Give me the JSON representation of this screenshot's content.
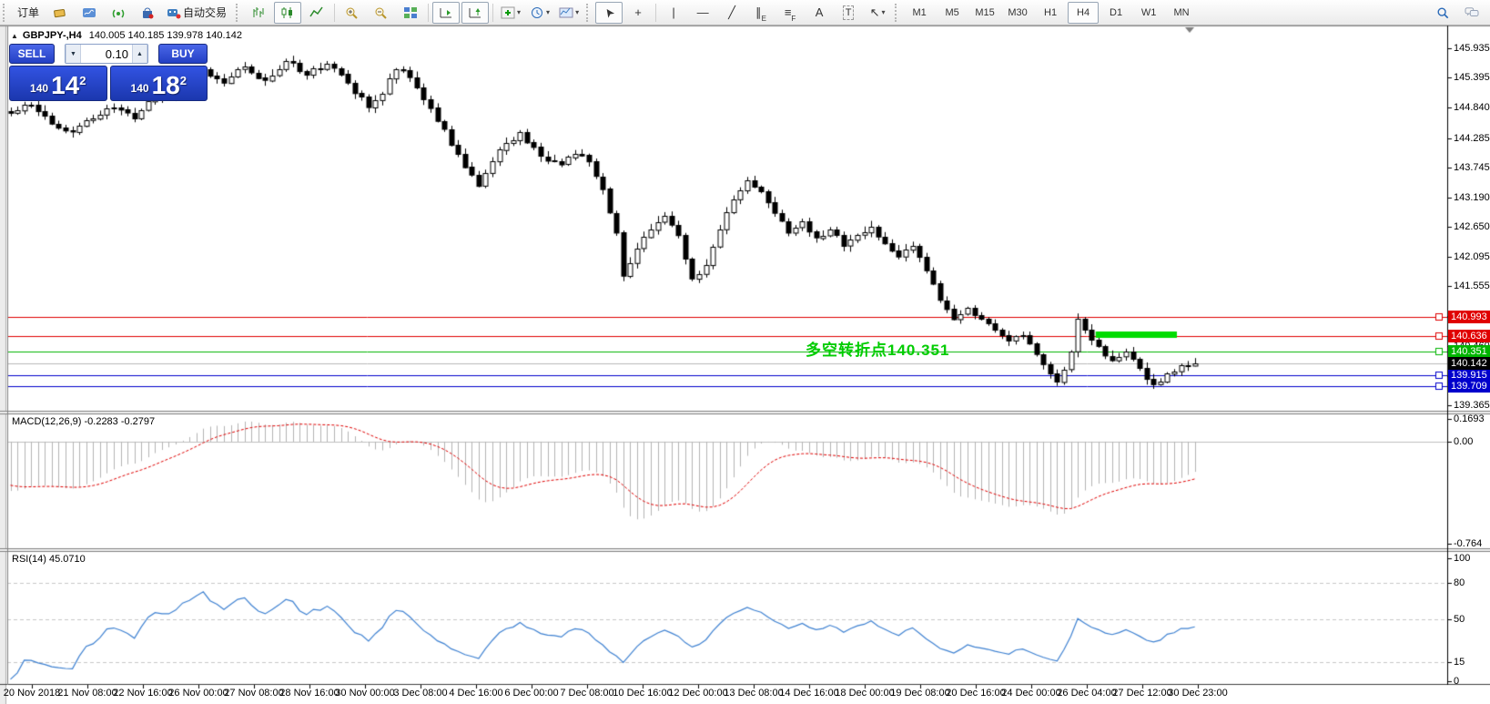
{
  "toolbar": {
    "items": [
      {
        "sep": "grip"
      },
      {
        "name": "new-order-button",
        "text": "订单"
      },
      {
        "name": "new-order-icon",
        "svg": "gold"
      },
      {
        "name": "publish-chart-icon",
        "svg": "cloud"
      },
      {
        "name": "signals-icon",
        "svg": "signal"
      },
      {
        "name": "market-icon",
        "svg": "bag"
      },
      {
        "name": "autotrading-button",
        "svg": "auto",
        "text": "自动交易"
      },
      {
        "sep": "grip"
      },
      {
        "name": "bar-chart-button",
        "svg": "bars"
      },
      {
        "name": "candlestick-chart-button",
        "svg": "candles",
        "active": true
      },
      {
        "name": "line-chart-button",
        "svg": "linechart"
      },
      {
        "sep": "bar"
      },
      {
        "name": "zoom-in-button",
        "svg": "zoomin"
      },
      {
        "name": "zoom-out-button",
        "svg": "zoomout"
      },
      {
        "name": "tile-windows-button",
        "svg": "tile"
      },
      {
        "sep": "bar"
      },
      {
        "name": "auto-scroll-button",
        "svg": "scroll",
        "active": true
      },
      {
        "name": "chart-shift-button",
        "svg": "shift",
        "active": true
      },
      {
        "sep": "bar"
      },
      {
        "name": "indicators-button",
        "svg": "indicators",
        "caret": true
      },
      {
        "name": "periods-button",
        "svg": "clock",
        "caret": true
      },
      {
        "name": "templates-button",
        "svg": "template",
        "caret": true
      },
      {
        "sep": "grip"
      },
      {
        "name": "cursor-button",
        "glyph": "➤",
        "cls": "rot225",
        "active": true
      },
      {
        "name": "crosshair-button",
        "glyph": "+"
      },
      {
        "sep": "bar"
      },
      {
        "name": "vertical-line-button",
        "glyph": "|"
      },
      {
        "name": "horizontal-line-button",
        "glyph": "—"
      },
      {
        "name": "trendline-button",
        "glyph": "╱"
      },
      {
        "name": "equidistant-channel-button",
        "glyph": "∥",
        "sub": "E"
      },
      {
        "name": "fibonacci-button",
        "glyph": "≡",
        "sub": "F"
      },
      {
        "name": "text-button",
        "glyph": "A"
      },
      {
        "name": "text-label-button",
        "glyph": "T",
        "cls": "boxed"
      },
      {
        "name": "arrows-button",
        "glyph": "↖",
        "caret": true
      },
      {
        "sep": "grip"
      },
      {
        "timeframes": true
      }
    ],
    "right_items": [
      {
        "name": "search-button",
        "svg": "search"
      },
      {
        "name": "chat-button",
        "svg": "chat"
      }
    ],
    "timeframes": [
      "M1",
      "M5",
      "M15",
      "M30",
      "H1",
      "H4",
      "D1",
      "W1",
      "MN"
    ],
    "active_timeframe": "H4"
  },
  "chart": {
    "collapse_icon": "▲",
    "title_symbol": "GBPJPY-,H4",
    "ohlc_text": "140.005 140.185 139.978 140.142",
    "trade_panel": {
      "sell_label": "SELL",
      "buy_label": "BUY",
      "volume": "0.10",
      "down_arrow": "▼",
      "up_arrow": "▲",
      "sell_price": {
        "prefix": "140",
        "big": "14",
        "sup": "2"
      },
      "buy_price": {
        "prefix": "140",
        "big": "18",
        "sup": "2"
      }
    },
    "annotation": {
      "text": "多空转折点140.351",
      "color": "#00CC00",
      "bar": 115.5,
      "price": 140.62
    }
  },
  "chart_data": {
    "type": "candlestick",
    "symbol": "GBPJPY-",
    "period": "H4",
    "bull_color": "#FFFFFF",
    "bear_color": "#000000",
    "outline_color": "#000000",
    "visible_bars": 173,
    "warmup_bars": 28,
    "warmup_start_price": 146.6,
    "price_axis": {
      "pane_top_value": 146.34,
      "pane_bottom_value": 139.28,
      "tick_labels": [
        "145.935",
        "145.395",
        "144.840",
        "144.285",
        "143.745",
        "143.190",
        "142.650",
        "142.095",
        "141.555",
        "141.000",
        "140.460",
        "139.905",
        "139.365"
      ]
    },
    "time_axis": {
      "labels": [
        "20 Nov 2018",
        "21 Nov 08:00",
        "22 Nov 16:00",
        "26 Nov 00:00",
        "27 Nov 08:00",
        "28 Nov 16:00",
        "30 Nov 00:00",
        "3 Dec 08:00",
        "4 Dec 16:00",
        "6 Dec 00:00",
        "7 Dec 08:00",
        "10 Dec 16:00",
        "12 Dec 00:00",
        "13 Dec 08:00",
        "14 Dec 16:00",
        "18 Dec 00:00",
        "19 Dec 08:00",
        "20 Dec 16:00",
        "24 Dec 00:00",
        "26 Dec 04:00",
        "27 Dec 12:00",
        "30 Dec 23:00"
      ]
    },
    "close_anchors": [
      [
        0,
        144.75
      ],
      [
        3,
        144.9
      ],
      [
        6,
        144.55
      ],
      [
        9,
        144.4
      ],
      [
        12,
        144.65
      ],
      [
        15,
        144.85
      ],
      [
        18,
        144.65
      ],
      [
        21,
        145.05
      ],
      [
        24,
        145.1
      ],
      [
        28,
        145.55
      ],
      [
        31,
        145.3
      ],
      [
        34,
        145.6
      ],
      [
        37,
        145.35
      ],
      [
        40,
        145.7
      ],
      [
        43,
        145.45
      ],
      [
        46,
        145.65
      ],
      [
        49,
        145.3
      ],
      [
        52,
        144.85
      ],
      [
        54,
        145.1
      ],
      [
        56,
        145.55
      ],
      [
        58,
        145.4
      ],
      [
        60,
        145.0
      ],
      [
        63,
        144.45
      ],
      [
        66,
        143.75
      ],
      [
        68,
        143.4
      ],
      [
        70,
        143.85
      ],
      [
        72,
        144.2
      ],
      [
        74,
        144.4
      ],
      [
        77,
        143.95
      ],
      [
        80,
        143.8
      ],
      [
        82,
        144.0
      ],
      [
        84,
        143.85
      ],
      [
        86,
        143.35
      ],
      [
        88,
        142.55
      ],
      [
        89,
        141.75
      ],
      [
        91,
        142.25
      ],
      [
        93,
        142.6
      ],
      [
        95,
        142.85
      ],
      [
        97,
        142.5
      ],
      [
        99,
        141.7
      ],
      [
        101,
        141.95
      ],
      [
        103,
        142.6
      ],
      [
        105,
        143.15
      ],
      [
        107,
        143.5
      ],
      [
        109,
        143.3
      ],
      [
        111,
        142.9
      ],
      [
        113,
        142.55
      ],
      [
        115,
        142.75
      ],
      [
        117,
        142.45
      ],
      [
        119,
        142.6
      ],
      [
        121,
        142.3
      ],
      [
        123,
        142.5
      ],
      [
        125,
        142.65
      ],
      [
        127,
        142.35
      ],
      [
        129,
        142.1
      ],
      [
        131,
        142.3
      ],
      [
        133,
        141.85
      ],
      [
        135,
        141.3
      ],
      [
        137,
        140.95
      ],
      [
        139,
        141.15
      ],
      [
        141,
        140.95
      ],
      [
        143,
        140.75
      ],
      [
        145,
        140.55
      ],
      [
        147,
        140.65
      ],
      [
        149,
        140.3
      ],
      [
        151,
        139.95
      ],
      [
        152,
        139.8
      ],
      [
        154,
        140.35
      ],
      [
        155,
        140.95
      ],
      [
        156,
        140.75
      ],
      [
        158,
        140.45
      ],
      [
        160,
        140.2
      ],
      [
        162,
        140.35
      ],
      [
        164,
        140.05
      ],
      [
        166,
        139.75
      ],
      [
        168,
        139.95
      ],
      [
        170,
        140.1
      ],
      [
        172,
        140.142
      ]
    ],
    "horizontal_lines": [
      {
        "price": 140.993,
        "label": "140.993",
        "color": "#E00000"
      },
      {
        "price": 140.636,
        "label": "140.636",
        "color": "#E00000"
      },
      {
        "price": 140.351,
        "label": "140.351",
        "color": "#00B400"
      },
      {
        "price": 139.915,
        "label": "139.915",
        "color": "#0000CC"
      },
      {
        "price": 139.709,
        "label": "139.709",
        "color": "#0000CC"
      }
    ],
    "current_price": {
      "price": 140.142,
      "label": "140.142",
      "line_color": "#B8B8B8",
      "bg": "#000000"
    },
    "highlight_rect": {
      "from_bar": 158,
      "to_bar": 169,
      "price_top": 140.72,
      "price_bottom": 140.6,
      "color": "#00DC00"
    },
    "macd": {
      "name": "MACD(12,26,9)",
      "values": "-0.2283 -0.2797",
      "pane_top_value": 0.197,
      "pane_bottom_value": -0.789,
      "histogram_color": "#B4B4B4",
      "signal_color": "#E00000",
      "zero_line_color": "#C0C0C0",
      "ticks": [
        {
          "value": 0.1693,
          "label": "0.1693"
        },
        {
          "value": 0,
          "label": "0.00"
        },
        {
          "value": -0.764,
          "label": "-0.764"
        }
      ]
    },
    "rsi": {
      "name": "RSI(14)",
      "values": "45.0710",
      "pane_top_value": 105,
      "pane_bottom_value": -2.5,
      "line_color": "#3F82D2",
      "level_line_color": "#C8C8C8",
      "levels": [
        80,
        50,
        15
      ],
      "ticks": [
        {
          "value": 100,
          "label": "100"
        },
        {
          "value": 80,
          "label": "80"
        },
        {
          "value": 50,
          "label": "50"
        },
        {
          "value": 15,
          "label": "15"
        },
        {
          "value": 0,
          "label": "0"
        }
      ]
    }
  }
}
